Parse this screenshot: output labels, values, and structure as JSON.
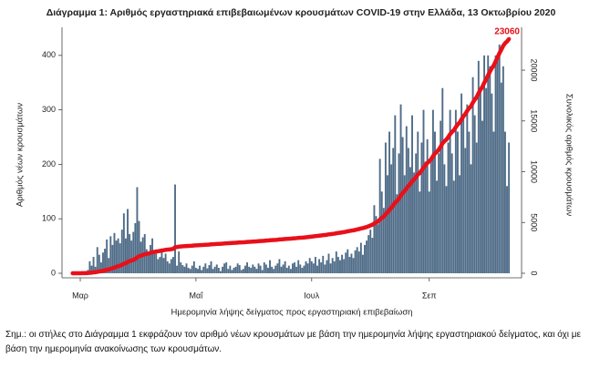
{
  "chart_data": {
    "type": "bar",
    "title": "Διάγραμμα 1: Αριθμός εργαστηριακά επιβεβαιωμένων κρουσμάτων COVID-19 στην Ελλάδα, 13 Οκτωβρίου 2020",
    "y_label": "Αριθμός νέων κρουσμάτων",
    "y2_label": "Συνολικός αριθμός κρουσμάτων",
    "x_label": "Ημερομηνία λήψης δείγματος προς εργαστηριακή επιβεβαίωση",
    "note": "Σημ.: οι στήλες στο Διάγραμμα 1 εκφράζουν τον αριθμό νέων κρουσμάτων με βάση την ημερομηνία λήψης εργαστηριακού δείγματος, και όχι με βάση την ημερομηνία ανακοίνωσης των κρουσμάτων.",
    "categories": [
      null,
      null,
      null,
      null,
      "Μαρ",
      null,
      null,
      null,
      null,
      null,
      null,
      null,
      null,
      null,
      null,
      null,
      null,
      null,
      null,
      null,
      null,
      null,
      null,
      null,
      null,
      null,
      null,
      null,
      null,
      null,
      null,
      null,
      null,
      null,
      null,
      null,
      null,
      null,
      null,
      null,
      null,
      null,
      null,
      null,
      null,
      null,
      null,
      null,
      null,
      null,
      null,
      null,
      null,
      null,
      null,
      null,
      null,
      null,
      null,
      null,
      null,
      null,
      null,
      null,
      null,
      "Μαΐ",
      null,
      null,
      null,
      null,
      null,
      null,
      null,
      null,
      null,
      null,
      null,
      null,
      null,
      null,
      null,
      null,
      null,
      null,
      null,
      null,
      null,
      null,
      null,
      null,
      null,
      null,
      null,
      null,
      null,
      null,
      null,
      null,
      null,
      null,
      null,
      null,
      null,
      null,
      null,
      null,
      null,
      null,
      null,
      null,
      null,
      null,
      null,
      null,
      null,
      null,
      null,
      null,
      null,
      null,
      null,
      null,
      null,
      null,
      null,
      null,
      "Ιουλ",
      null,
      null,
      null,
      null,
      null,
      null,
      null,
      null,
      null,
      null,
      null,
      null,
      null,
      null,
      null,
      null,
      null,
      null,
      null,
      null,
      null,
      null,
      null,
      null,
      null,
      null,
      null,
      null,
      null,
      null,
      null,
      null,
      null,
      null,
      null,
      null,
      null,
      null,
      null,
      null,
      null,
      null,
      null,
      null,
      null,
      null,
      null,
      null,
      null,
      null,
      null,
      null,
      null,
      null,
      null,
      null,
      null,
      null,
      null,
      null,
      null,
      "Σεπ",
      null,
      null,
      null,
      null,
      null,
      null,
      null,
      null,
      null,
      null,
      null,
      null,
      null,
      null,
      null,
      null,
      null,
      null,
      null,
      null,
      null,
      null,
      null,
      null,
      null,
      null,
      null,
      null,
      null,
      null,
      null,
      null,
      null,
      null,
      null,
      null,
      null,
      null,
      null,
      null,
      null,
      null
    ],
    "series": [
      {
        "type": "bar",
        "color": "#4f6c88",
        "values": [
          1,
          2,
          1,
          0,
          1,
          2,
          3,
          4,
          6,
          22,
          14,
          30,
          12,
          48,
          34,
          20,
          38,
          45,
          62,
          28,
          68,
          52,
          74,
          60,
          64,
          55,
          80,
          110,
          64,
          118,
          72,
          60,
          76,
          92,
          158,
          96,
          58,
          66,
          72,
          44,
          38,
          52,
          64,
          40,
          36,
          26,
          30,
          44,
          28,
          36,
          22,
          18,
          26,
          30,
          163,
          14,
          40,
          20,
          15,
          12,
          18,
          10,
          8,
          14,
          22,
          10,
          8,
          14,
          6,
          12,
          18,
          9,
          15,
          22,
          8,
          12,
          16,
          10,
          4,
          12,
          18,
          20,
          8,
          14,
          6,
          10,
          12,
          18,
          15,
          6,
          8,
          14,
          20,
          12,
          10,
          16,
          12,
          8,
          18,
          14,
          6,
          20,
          16,
          10,
          24,
          12,
          8,
          14,
          18,
          26,
          12,
          16,
          22,
          10,
          14,
          8,
          18,
          20,
          12,
          24,
          16,
          10,
          14,
          22,
          18,
          28,
          22,
          18,
          30,
          14,
          26,
          20,
          32,
          16,
          24,
          36,
          18,
          28,
          22,
          40,
          30,
          24,
          34,
          26,
          38,
          44,
          30,
          36,
          28,
          42,
          48,
          40,
          56,
          34,
          52,
          60,
          70,
          80,
          65,
          125,
          105,
          90,
          210,
          150,
          120,
          240,
          180,
          260,
          200,
          230,
          290,
          145,
          220,
          310,
          250,
          180,
          270,
          230,
          195,
          290,
          185,
          220,
          260,
          150,
          240,
          300,
          205,
          246,
          150,
          210,
          300,
          260,
          170,
          220,
          280,
          340,
          200,
          160,
          240,
          300,
          220,
          170,
          300,
          260,
          180,
          330,
          290,
          230,
          310,
          260,
          200,
          360,
          290,
          240,
          390,
          340,
          280,
          400,
          340,
          400,
          380,
          330,
          260,
          400,
          390,
          420,
          350,
          380,
          260,
          160,
          240
        ]
      },
      {
        "type": "line",
        "axis": "y2",
        "color": "#e8101a",
        "values": [
          1,
          3,
          4,
          4,
          5,
          7,
          10,
          14,
          20,
          42,
          56,
          86,
          98,
          146,
          180,
          200,
          238,
          283,
          345,
          373,
          441,
          493,
          567,
          627,
          691,
          746,
          826,
          936,
          1000,
          1118,
          1190,
          1250,
          1326,
          1418,
          1576,
          1672,
          1730,
          1796,
          1868,
          1912,
          1950,
          2002,
          2066,
          2106,
          2142,
          2168,
          2198,
          2242,
          2270,
          2306,
          2328,
          2346,
          2372,
          2402,
          2565,
          2579,
          2619,
          2639,
          2654,
          2666,
          2684,
          2694,
          2702,
          2716,
          2738,
          2748,
          2756,
          2770,
          2776,
          2788,
          2806,
          2815,
          2830,
          2852,
          2860,
          2872,
          2888,
          2898,
          2902,
          2914,
          2932,
          2952,
          2960,
          2974,
          2980,
          2990,
          3002,
          3020,
          3035,
          3041,
          3049,
          3063,
          3083,
          3095,
          3105,
          3121,
          3133,
          3141,
          3159,
          3173,
          3179,
          3199,
          3215,
          3225,
          3249,
          3261,
          3269,
          3283,
          3301,
          3327,
          3339,
          3355,
          3377,
          3387,
          3401,
          3409,
          3427,
          3447,
          3459,
          3483,
          3499,
          3509,
          3523,
          3545,
          3563,
          3591,
          3613,
          3631,
          3661,
          3675,
          3701,
          3721,
          3753,
          3769,
          3793,
          3829,
          3847,
          3875,
          3897,
          3937,
          3967,
          3991,
          4025,
          4051,
          4089,
          4133,
          4163,
          4199,
          4227,
          4269,
          4317,
          4357,
          4413,
          4447,
          4499,
          4559,
          4629,
          4709,
          4774,
          4899,
          5004,
          5094,
          5304,
          5454,
          5574,
          5814,
          5994,
          6254,
          6454,
          6684,
          6974,
          7119,
          7339,
          7649,
          7899,
          8079,
          8349,
          8579,
          8774,
          9064,
          9249,
          9469,
          9729,
          9879,
          10119,
          10419,
          10624,
          10870,
          11020,
          11230,
          11530,
          11790,
          11960,
          12180,
          12460,
          12800,
          13000,
          13160,
          13400,
          13700,
          13920,
          14090,
          14390,
          14650,
          14830,
          15160,
          15450,
          15680,
          15990,
          16250,
          16450,
          16810,
          17100,
          17340,
          17730,
          18070,
          18350,
          18750,
          19090,
          19490,
          19870,
          20200,
          20460,
          20860,
          21250,
          21670,
          22020,
          22400,
          22660,
          22820,
          23060
        ]
      }
    ],
    "ylim": [
      -8,
      440
    ],
    "yticks": [
      0,
      100,
      200,
      300,
      400
    ],
    "y2lim": [
      -430,
      23600
    ],
    "y2ticks": [
      0,
      5000,
      10000,
      15000,
      20000
    ]
  }
}
